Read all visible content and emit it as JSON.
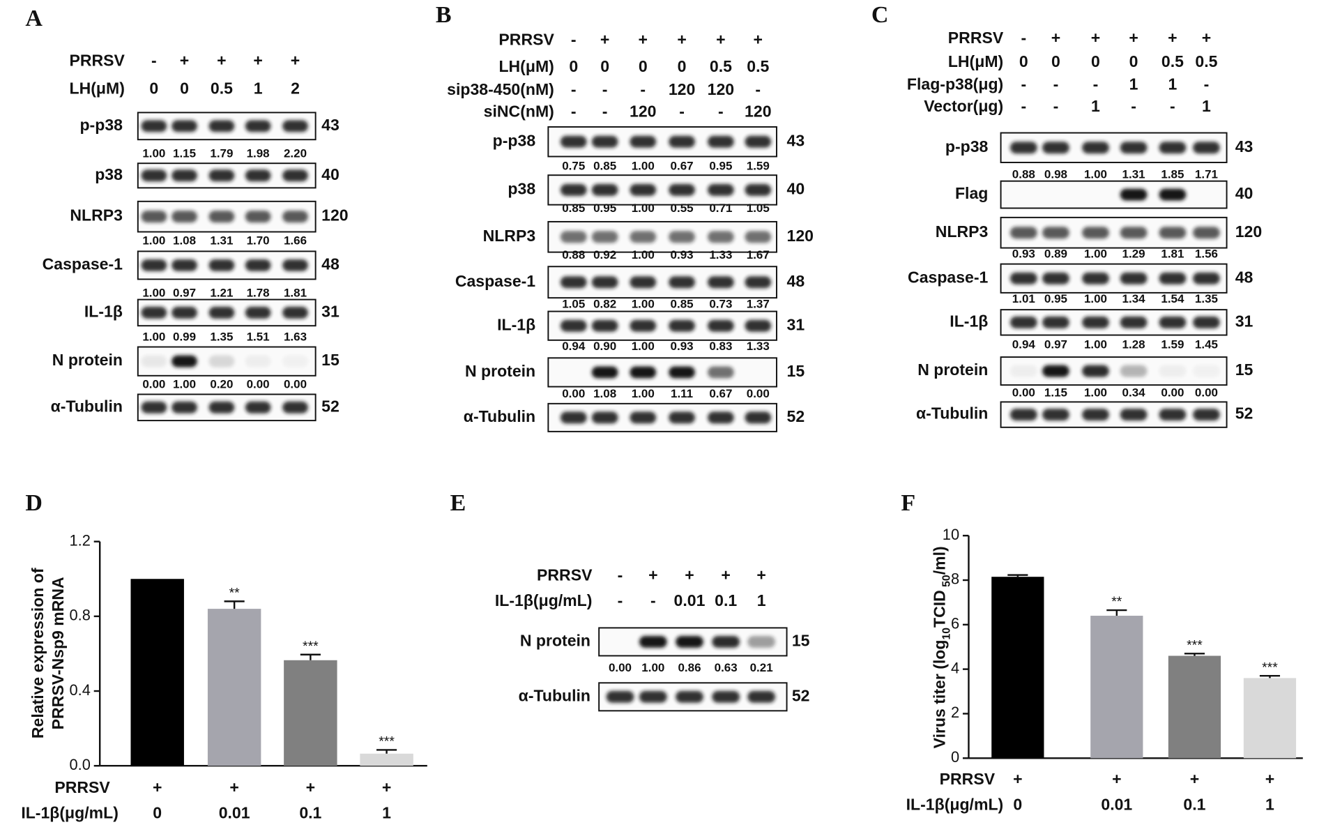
{
  "panels": {
    "A": {
      "label": "A",
      "conditions": [
        {
          "name": "PRRSV",
          "values": [
            "-",
            "+",
            "+",
            "+",
            "+"
          ]
        },
        {
          "name": "LH(μM)",
          "values": [
            "0",
            "0",
            "0.5",
            "1",
            "2"
          ]
        }
      ],
      "rows": [
        {
          "name": "p-p38",
          "kda": "43",
          "quant": [
            "1.00",
            "1.15",
            "1.79",
            "1.98",
            "2.20"
          ]
        },
        {
          "name": "p38",
          "kda": "40"
        },
        {
          "name": "NLRP3",
          "kda": "120",
          "quant": [
            "1.00",
            "1.08",
            "1.31",
            "1.70",
            "1.66"
          ]
        },
        {
          "name": "Caspase-1",
          "kda": "48",
          "quant": [
            "1.00",
            "0.97",
            "1.21",
            "1.78",
            "1.81"
          ]
        },
        {
          "name": "IL-1β",
          "kda": "31",
          "quant": [
            "1.00",
            "0.99",
            "1.35",
            "1.51",
            "1.63"
          ]
        },
        {
          "name": "N protein",
          "kda": "15",
          "quant": [
            "0.00",
            "1.00",
            "0.20",
            "0.00",
            "0.00"
          ]
        },
        {
          "name": "α-Tubulin",
          "kda": "52"
        }
      ]
    },
    "B": {
      "label": "B",
      "conditions": [
        {
          "name": "PRRSV",
          "values": [
            "-",
            "+",
            "+",
            "+",
            "+",
            "+"
          ]
        },
        {
          "name": "LH(μM)",
          "values": [
            "0",
            "0",
            "0",
            "0",
            "0.5",
            "0.5"
          ]
        },
        {
          "name": "sip38-450(nM)",
          "values": [
            "-",
            "-",
            "-",
            "120",
            "120",
            "-"
          ]
        },
        {
          "name": "siNC(nM)",
          "values": [
            "-",
            "-",
            "120",
            "-",
            "-",
            "120"
          ]
        }
      ],
      "rows": [
        {
          "name": "p-p38",
          "kda": "43",
          "quant": [
            "0.75",
            "0.85",
            "1.00",
            "0.67",
            "0.95",
            "1.59"
          ]
        },
        {
          "name": "p38",
          "kda": "40",
          "quant": [
            "0.85",
            "0.95",
            "1.00",
            "0.55",
            "0.71",
            "1.05"
          ]
        },
        {
          "name": "NLRP3",
          "kda": "120",
          "quant": [
            "0.88",
            "0.92",
            "1.00",
            "0.93",
            "1.33",
            "1.67"
          ]
        },
        {
          "name": "Caspase-1",
          "kda": "48",
          "quant": [
            "1.05",
            "0.82",
            "1.00",
            "0.85",
            "0.73",
            "1.37"
          ]
        },
        {
          "name": "IL-1β",
          "kda": "31",
          "quant": [
            "0.94",
            "0.90",
            "1.00",
            "0.93",
            "0.83",
            "1.33"
          ]
        },
        {
          "name": "N protein",
          "kda": "15",
          "quant": [
            "0.00",
            "1.08",
            "1.00",
            "1.11",
            "0.67",
            "0.00"
          ]
        },
        {
          "name": "α-Tubulin",
          "kda": "52"
        }
      ]
    },
    "C": {
      "label": "C",
      "conditions": [
        {
          "name": "PRRSV",
          "values": [
            "-",
            "+",
            "+",
            "+",
            "+",
            "+"
          ]
        },
        {
          "name": "LH(μM)",
          "values": [
            "0",
            "0",
            "0",
            "0",
            "0.5",
            "0.5"
          ]
        },
        {
          "name": "Flag-p38(μg)",
          "values": [
            "-",
            "-",
            "-",
            "1",
            "1",
            "-"
          ]
        },
        {
          "name": "Vector(μg)",
          "values": [
            "-",
            "-",
            "1",
            "-",
            "-",
            "1"
          ]
        }
      ],
      "rows": [
        {
          "name": "p-p38",
          "kda": "43",
          "quant": [
            "0.88",
            "0.98",
            "1.00",
            "1.31",
            "1.85",
            "1.71"
          ]
        },
        {
          "name": "Flag",
          "kda": "40"
        },
        {
          "name": "NLRP3",
          "kda": "120",
          "quant": [
            "0.93",
            "0.89",
            "1.00",
            "1.29",
            "1.81",
            "1.56"
          ]
        },
        {
          "name": "Caspase-1",
          "kda": "48",
          "quant": [
            "1.01",
            "0.95",
            "1.00",
            "1.34",
            "1.54",
            "1.35"
          ]
        },
        {
          "name": "IL-1β",
          "kda": "31",
          "quant": [
            "0.94",
            "0.97",
            "1.00",
            "1.28",
            "1.59",
            "1.45"
          ]
        },
        {
          "name": "N protein",
          "kda": "15",
          "quant": [
            "0.00",
            "1.15",
            "1.00",
            "0.34",
            "0.00",
            "0.00"
          ]
        },
        {
          "name": "α-Tubulin",
          "kda": "52"
        }
      ]
    },
    "E": {
      "label": "E",
      "conditions": [
        {
          "name": "PRRSV",
          "values": [
            "-",
            "+",
            "+",
            "+",
            "+"
          ]
        },
        {
          "name": "IL-1β(μg/mL)",
          "values": [
            "-",
            "-",
            "0.01",
            "0.1",
            "1"
          ]
        }
      ],
      "rows": [
        {
          "name": "N protein",
          "kda": "15",
          "quant": [
            "0.00",
            "1.00",
            "0.86",
            "0.63",
            "0.21"
          ]
        },
        {
          "name": "α-Tubulin",
          "kda": "52"
        }
      ]
    }
  },
  "chart_data": [
    {
      "type": "bar",
      "panel_label": "D",
      "y_label": [
        "Relative expression of",
        "PRRSV-Nsp9 mRNA"
      ],
      "treatment": {
        "name": "PRRSV",
        "values": [
          "+",
          "+",
          "+",
          "+"
        ]
      },
      "category_label": "IL-1β(μg/mL)",
      "categories": [
        "0",
        "0.01",
        "0.1",
        "1"
      ],
      "values": [
        1.0,
        0.84,
        0.565,
        0.065
      ],
      "errors": [
        null,
        0.04,
        0.03,
        0.02
      ],
      "significance": [
        null,
        "**",
        "***",
        "***"
      ],
      "colors": [
        "#000000",
        "#a5a5ad",
        "#808080",
        "#d9d9d9"
      ],
      "ylim": [
        0,
        1.2
      ],
      "yticks": [
        {
          "value": 0,
          "label": "0.0"
        },
        0.4,
        0.8,
        1.2
      ]
    },
    {
      "type": "bar",
      "panel_label": "F",
      "y_label": [
        "Virus titer (log",
        "10",
        "TCID",
        " 50",
        "/ml)"
      ],
      "treatment": {
        "name": "PRRSV",
        "values": [
          "+",
          "+",
          "+",
          "+"
        ]
      },
      "category_label": "IL-1β(μg/mL)",
      "categories": [
        "0",
        "0.01",
        "0.1",
        "1"
      ],
      "values": [
        8.15,
        6.4,
        4.6,
        3.6
      ],
      "errors": [
        0.08,
        0.25,
        0.1,
        0.1
      ],
      "significance": [
        null,
        "**",
        "***",
        "***"
      ],
      "colors": [
        "#000000",
        "#a5a5ad",
        "#808080",
        "#d9d9d9"
      ],
      "ylim": [
        0,
        10
      ],
      "yticks": [
        0,
        2,
        4,
        6,
        8,
        10
      ]
    }
  ]
}
